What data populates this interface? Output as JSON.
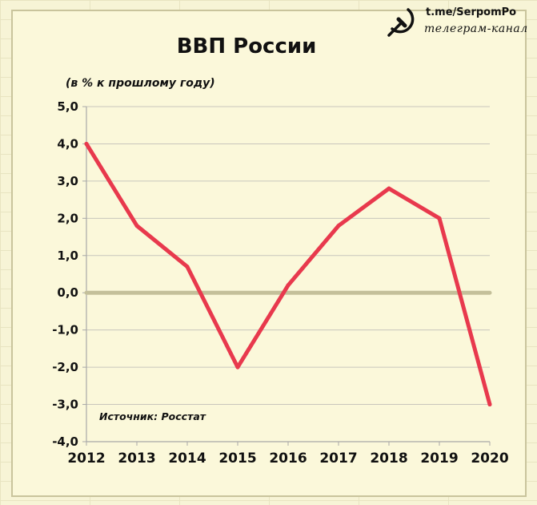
{
  "watermark": {
    "url": "t.me/SerpomPo",
    "subtitle": "телеграм-канал",
    "logo_icon": "hammer-sickle-icon"
  },
  "chart_data": {
    "type": "line",
    "title": "ВВП России",
    "subtitle": "(в % к прошлому году)",
    "annotation": "Источник: Росстат",
    "xlabel": "",
    "ylabel": "",
    "categories": [
      "2012",
      "2013",
      "2014",
      "2015",
      "2016",
      "2017",
      "2018",
      "2019",
      "2020"
    ],
    "series": [
      {
        "values": [
          4.0,
          1.8,
          0.7,
          -2.0,
          0.2,
          1.8,
          2.8,
          2.0,
          -3.0
        ],
        "color": "#e8394d"
      }
    ],
    "ylim": [
      -4.0,
      5.0
    ],
    "yticks": [
      5.0,
      4.0,
      3.0,
      2.0,
      1.0,
      0.0,
      -1.0,
      -2.0,
      -3.0,
      -4.0
    ],
    "ytick_labels": [
      "5,0",
      "4,0",
      "3,0",
      "2,0",
      "1,0",
      "0,0",
      "-1,0",
      "-2,0",
      "-3,0",
      "-4,0"
    ],
    "grid": true,
    "zero_line_color": "#c4c09a",
    "grid_color": "#c8c6bc",
    "axis_color": "#a8a8a8"
  }
}
